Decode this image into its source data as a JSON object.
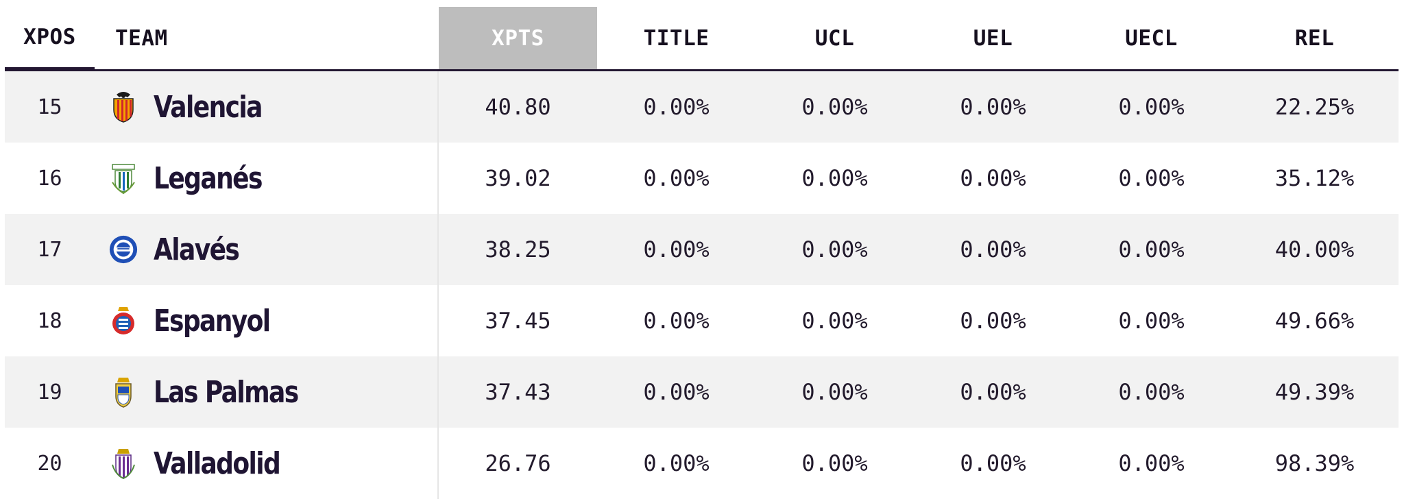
{
  "columns": {
    "pos": "XPOS",
    "team": "TEAM",
    "xpts": "XPTS",
    "title": "TITLE",
    "ucl": "UCL",
    "uel": "UEL",
    "uecl": "UECL",
    "rel": "REL"
  },
  "rows": [
    {
      "pos": "15",
      "team": "Valencia",
      "crest_icon": "valencia-crest-icon",
      "xpts": "40.80",
      "title": "0.00%",
      "ucl": "0.00%",
      "uel": "0.00%",
      "uecl": "0.00%",
      "rel": "22.25%"
    },
    {
      "pos": "16",
      "team": "Leganés",
      "crest_icon": "leganes-crest-icon",
      "xpts": "39.02",
      "title": "0.00%",
      "ucl": "0.00%",
      "uel": "0.00%",
      "uecl": "0.00%",
      "rel": "35.12%"
    },
    {
      "pos": "17",
      "team": "Alavés",
      "crest_icon": "alaves-crest-icon",
      "xpts": "38.25",
      "title": "0.00%",
      "ucl": "0.00%",
      "uel": "0.00%",
      "uecl": "0.00%",
      "rel": "40.00%"
    },
    {
      "pos": "18",
      "team": "Espanyol",
      "crest_icon": "espanyol-crest-icon",
      "xpts": "37.45",
      "title": "0.00%",
      "ucl": "0.00%",
      "uel": "0.00%",
      "uecl": "0.00%",
      "rel": "49.66%"
    },
    {
      "pos": "19",
      "team": "Las Palmas",
      "crest_icon": "las-palmas-crest-icon",
      "xpts": "37.43",
      "title": "0.00%",
      "ucl": "0.00%",
      "uel": "0.00%",
      "uecl": "0.00%",
      "rel": "49.39%"
    },
    {
      "pos": "20",
      "team": "Valladolid",
      "crest_icon": "valladolid-crest-icon",
      "xpts": "26.76",
      "title": "0.00%",
      "ucl": "0.00%",
      "uel": "0.00%",
      "uecl": "0.00%",
      "rel": "98.39%"
    }
  ],
  "colors": {
    "header_text": "#16101f",
    "active_column_bg": "#bdbdbd",
    "row_shade": "#f2f2f2",
    "team_text": "#1f1533",
    "divider": "#231732"
  }
}
